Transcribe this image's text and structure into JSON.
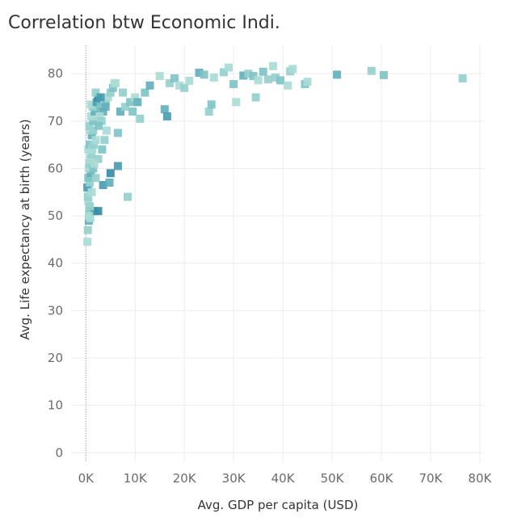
{
  "title": "Correlation btw Economic Indi.",
  "chart_data": {
    "type": "scatter",
    "title": "Correlation btw Economic Indi.",
    "xlabel": "Avg. GDP per capita (USD)",
    "ylabel": "Avg. Life expectancy at birth (years)",
    "xlim": [
      -3000,
      81000
    ],
    "ylim": [
      -2,
      86
    ],
    "xticks": [
      0,
      10000,
      20000,
      30000,
      40000,
      50000,
      60000,
      70000,
      80000
    ],
    "xtick_labels": [
      "0K",
      "10K",
      "20K",
      "30K",
      "40K",
      "50K",
      "60K",
      "70K",
      "80K"
    ],
    "yticks": [
      0,
      10,
      20,
      30,
      40,
      50,
      60,
      70,
      80
    ],
    "ytick_labels": [
      "0",
      "10",
      "20",
      "30",
      "40",
      "50",
      "60",
      "70",
      "80"
    ],
    "grid": true,
    "colors": [
      "#aadbd6",
      "#95d0cd",
      "#7fc3c7",
      "#62b0bd",
      "#4a9db1",
      "#3a8ba4"
    ],
    "points": [
      [
        300,
        44.5,
        0
      ],
      [
        400,
        47,
        1
      ],
      [
        600,
        49,
        3
      ],
      [
        700,
        51,
        2
      ],
      [
        900,
        49.5,
        0
      ],
      [
        500,
        53,
        0
      ],
      [
        400,
        54,
        1
      ],
      [
        600,
        55.5,
        0
      ],
      [
        300,
        56,
        4
      ],
      [
        800,
        57,
        1
      ],
      [
        500,
        58,
        2
      ],
      [
        1000,
        59,
        3
      ],
      [
        600,
        60,
        0
      ],
      [
        700,
        61,
        1
      ],
      [
        900,
        62,
        0
      ],
      [
        1100,
        63,
        1
      ],
      [
        500,
        64,
        0
      ],
      [
        800,
        65,
        2
      ],
      [
        1300,
        64,
        0
      ],
      [
        1600,
        65,
        1
      ],
      [
        1200,
        67,
        3
      ],
      [
        900,
        68,
        0
      ],
      [
        700,
        69,
        1
      ],
      [
        1500,
        70,
        2
      ],
      [
        1100,
        71,
        0
      ],
      [
        1800,
        72,
        3
      ],
      [
        1400,
        73,
        1
      ],
      [
        1000,
        73.5,
        0
      ],
      [
        2200,
        74,
        4
      ],
      [
        2500,
        75,
        5
      ],
      [
        2000,
        76,
        1
      ],
      [
        3000,
        73,
        2
      ],
      [
        3500,
        72,
        3
      ],
      [
        2800,
        71,
        0
      ],
      [
        3200,
        70,
        1
      ],
      [
        4000,
        74,
        2
      ],
      [
        4500,
        75,
        0
      ],
      [
        5000,
        76,
        1
      ],
      [
        5500,
        77,
        2
      ],
      [
        6000,
        78,
        0
      ],
      [
        3800,
        66,
        1
      ],
      [
        4200,
        68,
        0
      ],
      [
        6500,
        67.5,
        2
      ],
      [
        7000,
        72,
        3
      ],
      [
        8000,
        73,
        1
      ],
      [
        9000,
        74,
        2
      ],
      [
        10000,
        75,
        0
      ],
      [
        11000,
        70.5,
        1
      ],
      [
        12000,
        76,
        2
      ],
      [
        13000,
        77.5,
        3
      ],
      [
        1800,
        51,
        4
      ],
      [
        2500,
        51,
        5
      ],
      [
        3500,
        56.5,
        4
      ],
      [
        4800,
        57,
        3
      ],
      [
        5000,
        59,
        5
      ],
      [
        6500,
        60.5,
        4
      ],
      [
        8500,
        54,
        1
      ],
      [
        2000,
        66,
        0
      ],
      [
        1500,
        68,
        1
      ],
      [
        2600,
        69,
        2
      ],
      [
        15000,
        79.5,
        0
      ],
      [
        17000,
        78,
        1
      ],
      [
        18000,
        79,
        2
      ],
      [
        16000,
        72.5,
        3
      ],
      [
        16500,
        71,
        4
      ],
      [
        19000,
        77.5,
        0
      ],
      [
        20000,
        77,
        1
      ],
      [
        21000,
        78.5,
        0
      ],
      [
        23000,
        80.2,
        3
      ],
      [
        24000,
        79.8,
        2
      ],
      [
        25000,
        72,
        1
      ],
      [
        25500,
        73.5,
        2
      ],
      [
        26000,
        79.2,
        0
      ],
      [
        28000,
        80.3,
        1
      ],
      [
        29000,
        81.3,
        0
      ],
      [
        30000,
        77.8,
        2
      ],
      [
        30500,
        74,
        0
      ],
      [
        32000,
        79.6,
        3
      ],
      [
        33000,
        80,
        1
      ],
      [
        34000,
        79.5,
        2
      ],
      [
        34500,
        75,
        1
      ],
      [
        35000,
        78.6,
        0
      ],
      [
        36000,
        80.4,
        2
      ],
      [
        37000,
        78.8,
        1
      ],
      [
        38000,
        81.6,
        0
      ],
      [
        38500,
        79.2,
        1
      ],
      [
        39500,
        78.6,
        2
      ],
      [
        41000,
        77.5,
        0
      ],
      [
        41500,
        80.5,
        1
      ],
      [
        42000,
        81,
        0
      ],
      [
        44500,
        77.8,
        2
      ],
      [
        45000,
        78.3,
        0
      ],
      [
        51000,
        79.8,
        3
      ],
      [
        58000,
        80.6,
        1
      ],
      [
        60500,
        79.7,
        2
      ],
      [
        76500,
        79,
        1
      ],
      [
        5800,
        78,
        0
      ],
      [
        7500,
        76,
        1
      ],
      [
        9500,
        72,
        2
      ],
      [
        10500,
        74,
        3
      ],
      [
        3000,
        75,
        4
      ],
      [
        4000,
        73,
        3
      ],
      [
        1500,
        60,
        2
      ],
      [
        2000,
        58,
        1
      ],
      [
        1200,
        55,
        0
      ],
      [
        800,
        52,
        1
      ],
      [
        600,
        50,
        0
      ],
      [
        2500,
        62,
        1
      ],
      [
        3300,
        64,
        2
      ],
      [
        1700,
        61,
        0
      ]
    ]
  }
}
